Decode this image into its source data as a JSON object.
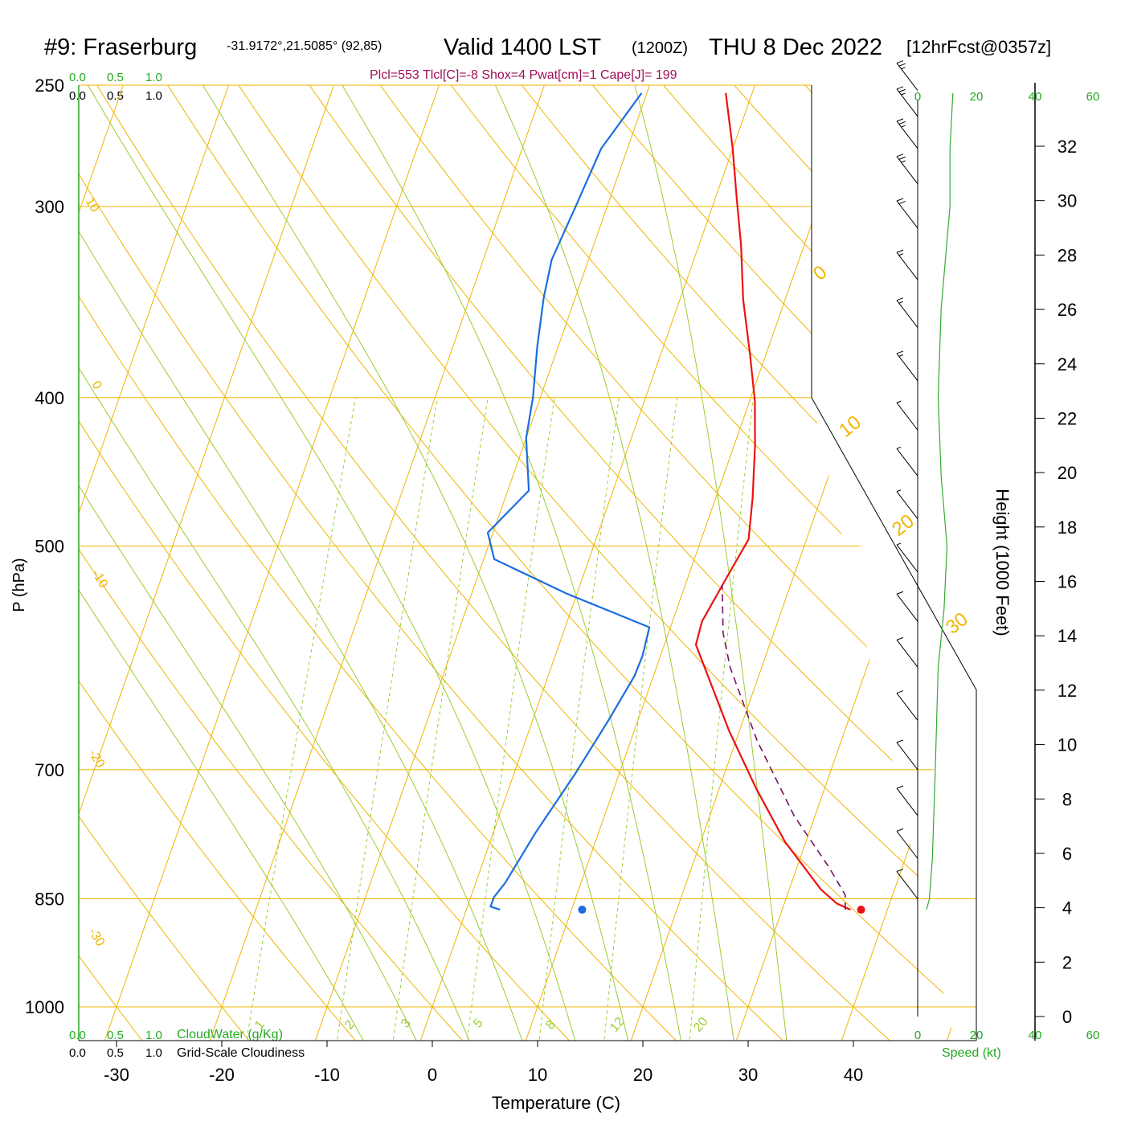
{
  "header": {
    "station": "#9: Fraserburg",
    "coords": "-31.9172°,21.5085° (92,85)",
    "valid": "Valid 1400 LST",
    "utc": "(1200Z)",
    "date": "THU 8 Dec 2022",
    "forecast": "[12hrFcst@0357z]",
    "indices": "Plcl=553 Tlcl[C]=-8 Shox=4 Pwat[cm]=1 Cape[J]= 199"
  },
  "scales": {
    "cloudwater_ticks": [
      "0.0",
      "0.5",
      "1.0"
    ],
    "cloudiness_ticks": [
      "0.0",
      "0.5",
      "1.0"
    ],
    "cloudwater_label": "CloudWater (g/Kg)",
    "cloudiness_label": "Grid-Scale Cloudiness",
    "speed_ticks": [
      "0",
      "20",
      "40",
      "60"
    ],
    "speed_label": "Speed (kt)"
  },
  "colors": {
    "isotherm": "#f0b400",
    "dry_adiabat": "#f0b400",
    "moist_adiabat": "#9acd32",
    "mixing_ratio": "#9acd32",
    "temperature": "#ee1111",
    "dewpoint": "#1a6ee0",
    "parcel": "#7a1060",
    "wind_speed": "#33aa33",
    "green_text": "#22aa22",
    "index_text": "#a0105a"
  },
  "chart_data": {
    "type": "line",
    "title": "#9: Fraserburg Valid 1400 LST (1200Z) THU 8 Dec 2022",
    "xlabel": "Temperature (C)",
    "ylabel": "P (hPa)",
    "y2label": "Height (1000 Feet)",
    "x_ticks": [
      "-30",
      "-20",
      "-10",
      "0",
      "10",
      "20",
      "30",
      "40"
    ],
    "pressure_ticks": [
      250,
      300,
      400,
      500,
      700,
      850,
      1000
    ],
    "height_ticks": [
      0,
      2,
      4,
      6,
      8,
      10,
      12,
      14,
      16,
      18,
      20,
      22,
      24,
      26,
      28,
      30,
      32
    ],
    "isotherm_labels": [
      "10",
      "0",
      "-10",
      "-20",
      "-30"
    ],
    "right_isotherm_labels": [
      "0",
      "10",
      "20",
      "30"
    ],
    "mixing_ratio_labels": [
      "1",
      "2",
      "3",
      "5",
      "8",
      "12",
      "20"
    ],
    "series": [
      {
        "name": "temperature",
        "points": [
          [
            36.5,
            864
          ],
          [
            35,
            856
          ],
          [
            33,
            838
          ],
          [
            28,
            780
          ],
          [
            23.5,
            720
          ],
          [
            19,
            660
          ],
          [
            13,
            580
          ],
          [
            12.8,
            560
          ],
          [
            13.8,
            520
          ],
          [
            14.5,
            495
          ],
          [
            13.5,
            465
          ],
          [
            12,
            430
          ],
          [
            10.5,
            402
          ],
          [
            8.5,
            375
          ],
          [
            6,
            345
          ],
          [
            4,
            318
          ],
          [
            2,
            296
          ],
          [
            0,
            275
          ],
          [
            -2.5,
            253
          ]
        ]
      },
      {
        "name": "dewpoint",
        "points": [
          [
            3.2,
            864
          ],
          [
            2.2,
            860
          ],
          [
            2.2,
            848
          ],
          [
            2.8,
            830
          ],
          [
            4,
            770
          ],
          [
            5.8,
            705
          ],
          [
            7.2,
            650
          ],
          [
            8.2,
            608
          ],
          [
            8.3,
            590
          ],
          [
            8,
            565
          ],
          [
            -1,
            537
          ],
          [
            -9,
            510
          ],
          [
            -10.5,
            490
          ],
          [
            -8,
            460
          ],
          [
            -10,
            425
          ],
          [
            -10.7,
            400
          ],
          [
            -12,
            370
          ],
          [
            -13,
            344
          ],
          [
            -13.5,
            325
          ],
          [
            -13,
            300
          ],
          [
            -12.5,
            275
          ],
          [
            -10.5,
            253
          ]
        ]
      },
      {
        "name": "parcel",
        "points": [
          [
            36,
            864
          ],
          [
            35.5,
            845
          ],
          [
            33,
            810
          ],
          [
            28,
            750
          ],
          [
            22,
            670
          ],
          [
            17,
            600
          ],
          [
            15.2,
            570
          ],
          [
            13.5,
            530
          ]
        ]
      }
    ],
    "surface_temperature": 37.5,
    "surface_dewpoint": 11,
    "surface_pressure": 864,
    "wind_speed_profile_kt": [
      [
        864,
        3
      ],
      [
        850,
        4
      ],
      [
        800,
        5
      ],
      [
        700,
        6
      ],
      [
        600,
        7
      ],
      [
        550,
        9
      ],
      [
        500,
        10
      ],
      [
        450,
        8
      ],
      [
        400,
        7
      ],
      [
        350,
        8
      ],
      [
        300,
        11
      ],
      [
        275,
        11
      ],
      [
        253,
        12
      ]
    ],
    "wind_barbs": [
      {
        "p": 850,
        "kt": 10
      },
      {
        "p": 800,
        "kt": 10
      },
      {
        "p": 750,
        "kt": 10
      },
      {
        "p": 700,
        "kt": 10
      },
      {
        "p": 650,
        "kt": 10
      },
      {
        "p": 600,
        "kt": 10
      },
      {
        "p": 560,
        "kt": 10
      },
      {
        "p": 520,
        "kt": 5
      },
      {
        "p": 480,
        "kt": 5
      },
      {
        "p": 450,
        "kt": 5
      },
      {
        "p": 420,
        "kt": 5
      },
      {
        "p": 390,
        "kt": 15
      },
      {
        "p": 360,
        "kt": 15
      },
      {
        "p": 335,
        "kt": 15
      },
      {
        "p": 310,
        "kt": 20
      },
      {
        "p": 290,
        "kt": 25
      },
      {
        "p": 275,
        "kt": 25
      },
      {
        "p": 262,
        "kt": 25
      },
      {
        "p": 252,
        "kt": 25
      }
    ]
  },
  "axes": {
    "pmin": 250,
    "pmax": 1000,
    "tmin_bottom": -30,
    "tmax_bottom": 40,
    "height_kft_at_1000": 0,
    "height_kft_at_250": 34
  }
}
